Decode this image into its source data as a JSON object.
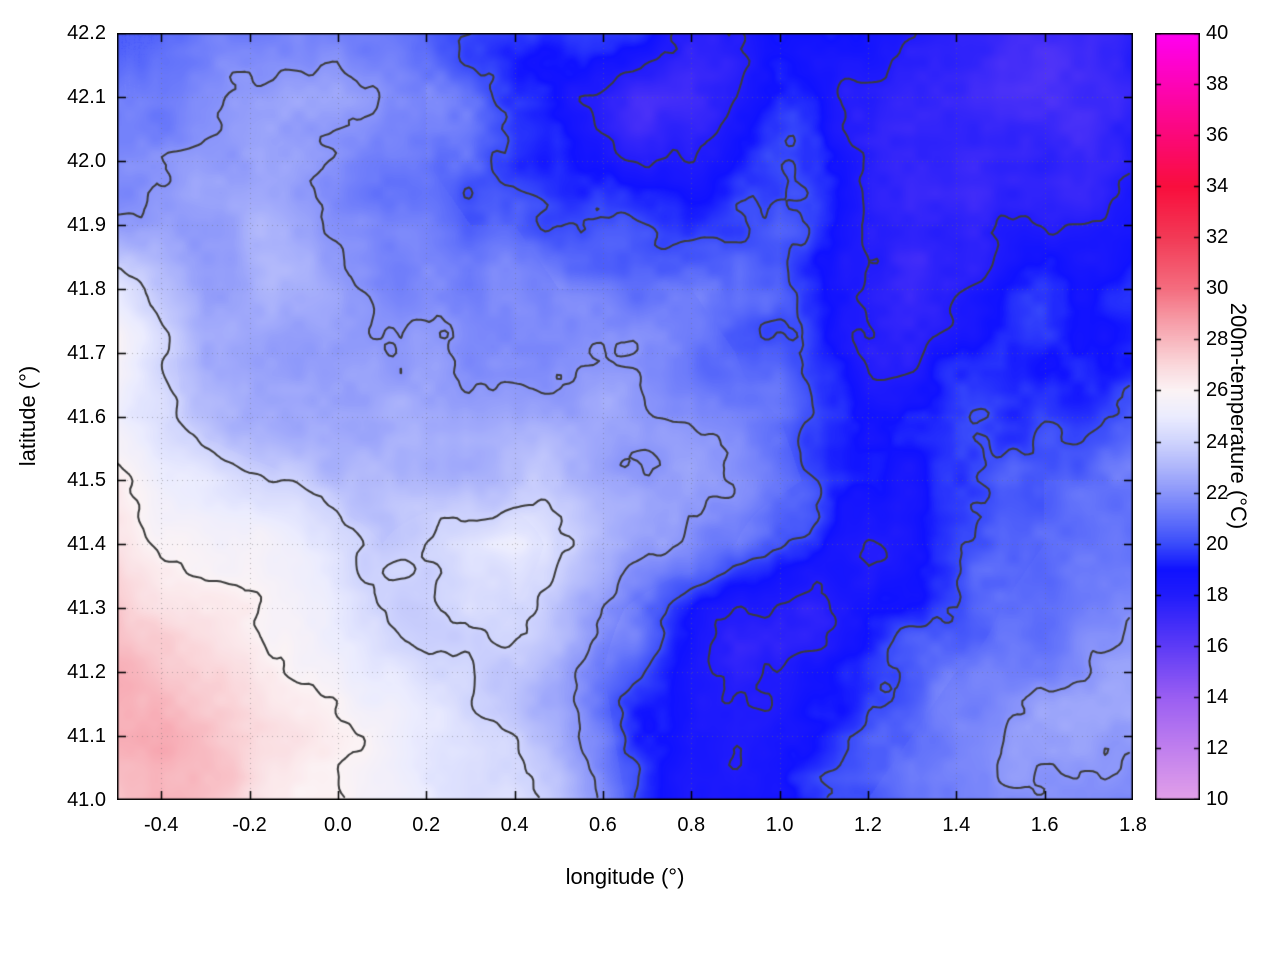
{
  "chart_data": {
    "type": "heatmap",
    "xlabel": "longitude (°)",
    "ylabel": "latitude (°)",
    "colorbar_label": "200m-temperature (°C)",
    "x_range": [
      -0.5,
      1.8
    ],
    "y_range": [
      41.0,
      42.2
    ],
    "z_range": [
      10,
      40
    ],
    "x_tick_labels": [
      "-0.4",
      "-0.2",
      "0.0",
      "0.2",
      "0.4",
      "0.6",
      "0.8",
      "1.0",
      "1.2",
      "1.4",
      "1.6",
      "1.8"
    ],
    "y_tick_labels": [
      "41.0",
      "41.1",
      "41.2",
      "41.3",
      "41.4",
      "41.5",
      "41.6",
      "41.7",
      "41.8",
      "41.9",
      "42.0",
      "42.1",
      "42.2"
    ],
    "colorbar_tick_labels": [
      "10",
      "12",
      "14",
      "16",
      "18",
      "20",
      "22",
      "24",
      "26",
      "28",
      "30",
      "32",
      "34",
      "36",
      "38",
      "40"
    ],
    "grid": {
      "lon_min": -0.5,
      "lon_max": 1.8,
      "lat_min": 41.0,
      "lat_max": 42.2,
      "order": "rows listed north (42.2) to south (41.0), columns west (-0.5) to east (1.8), step 0.1 deg",
      "values": [
        [
          21,
          21,
          21.5,
          21.5,
          22,
          22,
          21.5,
          21,
          20.5,
          20,
          19.5,
          19,
          18.5,
          18,
          18.5,
          19,
          19,
          18.5,
          18,
          17.5,
          17,
          16.5,
          16.5,
          17
        ],
        [
          21,
          21,
          21.5,
          22,
          22,
          22,
          21.5,
          21,
          20.5,
          19.5,
          19,
          18,
          17.5,
          17.5,
          18,
          19,
          18.5,
          18,
          17.5,
          17.5,
          17,
          17,
          17,
          17.5
        ],
        [
          21.5,
          21.5,
          22,
          22,
          22,
          21.5,
          21,
          21,
          20.5,
          20,
          19.5,
          18.5,
          18,
          18,
          19,
          19.5,
          19,
          18,
          17.5,
          17.5,
          18,
          18,
          17.5,
          18
        ],
        [
          22,
          22,
          22,
          22.5,
          22.5,
          22,
          21.5,
          21.5,
          21,
          21,
          20.5,
          20,
          19.5,
          19.5,
          20,
          20,
          19,
          18,
          17.5,
          18,
          18.5,
          18.5,
          18,
          18.5
        ],
        [
          25,
          23.5,
          22.5,
          22.5,
          22.5,
          22.5,
          22,
          22,
          21.5,
          21.5,
          21,
          21,
          21,
          21,
          20.5,
          20,
          19,
          18.5,
          18,
          18.5,
          19,
          19,
          18.5,
          19
        ],
        [
          26,
          24.5,
          23,
          22.5,
          22.5,
          22.5,
          22.5,
          22.5,
          22,
          22,
          22,
          22,
          21.5,
          21.5,
          21,
          20,
          19,
          18.5,
          18.5,
          19,
          19.5,
          19.5,
          19,
          19.5
        ],
        [
          25.5,
          24.5,
          23.5,
          23,
          23,
          23,
          23,
          23,
          22.5,
          22.5,
          22.5,
          22.5,
          22,
          22,
          21.5,
          21,
          20,
          19.5,
          19.5,
          20,
          20,
          20,
          20,
          20.5
        ],
        [
          26.5,
          25.5,
          25,
          24.5,
          24,
          23.5,
          23.5,
          23.5,
          23,
          23,
          23,
          23,
          22.5,
          22.5,
          22,
          21.5,
          20.5,
          19,
          19,
          19.5,
          20.5,
          21,
          21,
          21
        ],
        [
          27,
          26,
          25.5,
          25.5,
          25,
          24.5,
          24,
          24.5,
          25,
          25,
          23.5,
          23,
          22.5,
          22,
          21,
          19.5,
          18.5,
          18,
          18.5,
          19.5,
          20.5,
          21,
          21.5,
          21.5
        ],
        [
          27.5,
          26.5,
          26,
          26,
          25.5,
          25,
          24.5,
          24,
          24.5,
          24,
          23,
          21.5,
          20.5,
          19.5,
          18.5,
          18,
          17.5,
          18,
          19,
          20,
          21,
          21.5,
          21.5,
          21.5
        ],
        [
          28,
          27.5,
          27,
          26.5,
          26,
          25.5,
          25,
          24.5,
          24,
          23.5,
          22.5,
          21,
          19.5,
          18,
          17.5,
          18,
          18.5,
          19.5,
          20.5,
          21,
          21.5,
          21.5,
          22,
          22
        ],
        [
          28,
          28,
          27.5,
          27,
          26.5,
          26,
          25.5,
          25,
          24.5,
          24,
          23,
          21.5,
          19.5,
          18,
          17.5,
          18.5,
          19.5,
          20.5,
          21,
          21.5,
          21.5,
          22,
          22,
          22
        ],
        [
          27.5,
          28,
          27.5,
          27,
          26.5,
          26,
          25.5,
          25,
          24.5,
          24.5,
          23.5,
          22,
          20,
          18.5,
          18.5,
          19.5,
          20.5,
          21,
          21.5,
          21.5,
          22,
          22,
          22,
          22
        ]
      ]
    },
    "contour_levels": [
      18,
      20,
      22,
      24,
      26
    ],
    "contour_color": "#3c3c3c",
    "colormap": [
      {
        "v": 10,
        "c": "#e2a0e8"
      },
      {
        "v": 12,
        "c": "#c07fee"
      },
      {
        "v": 14,
        "c": "#9a5ef2"
      },
      {
        "v": 16,
        "c": "#5d3bf6"
      },
      {
        "v": 18,
        "c": "#211cfb"
      },
      {
        "v": 19,
        "c": "#1012ff"
      },
      {
        "v": 20,
        "c": "#3a4cfa"
      },
      {
        "v": 21,
        "c": "#6272fa"
      },
      {
        "v": 22,
        "c": "#8a95fa"
      },
      {
        "v": 23,
        "c": "#aeb6fb"
      },
      {
        "v": 24,
        "c": "#cfd4fd"
      },
      {
        "v": 25,
        "c": "#ebecfe"
      },
      {
        "v": 26,
        "c": "#fbf3f5"
      },
      {
        "v": 27,
        "c": "#fad8dc"
      },
      {
        "v": 28,
        "c": "#f8b6be"
      },
      {
        "v": 29,
        "c": "#f6939f"
      },
      {
        "v": 30,
        "c": "#f46d7f"
      },
      {
        "v": 32,
        "c": "#f23a56"
      },
      {
        "v": 34,
        "c": "#f90e3d"
      },
      {
        "v": 36,
        "c": "#fb0879"
      },
      {
        "v": 38,
        "c": "#fd04b6"
      },
      {
        "v": 40,
        "c": "#ff00f2"
      }
    ]
  }
}
